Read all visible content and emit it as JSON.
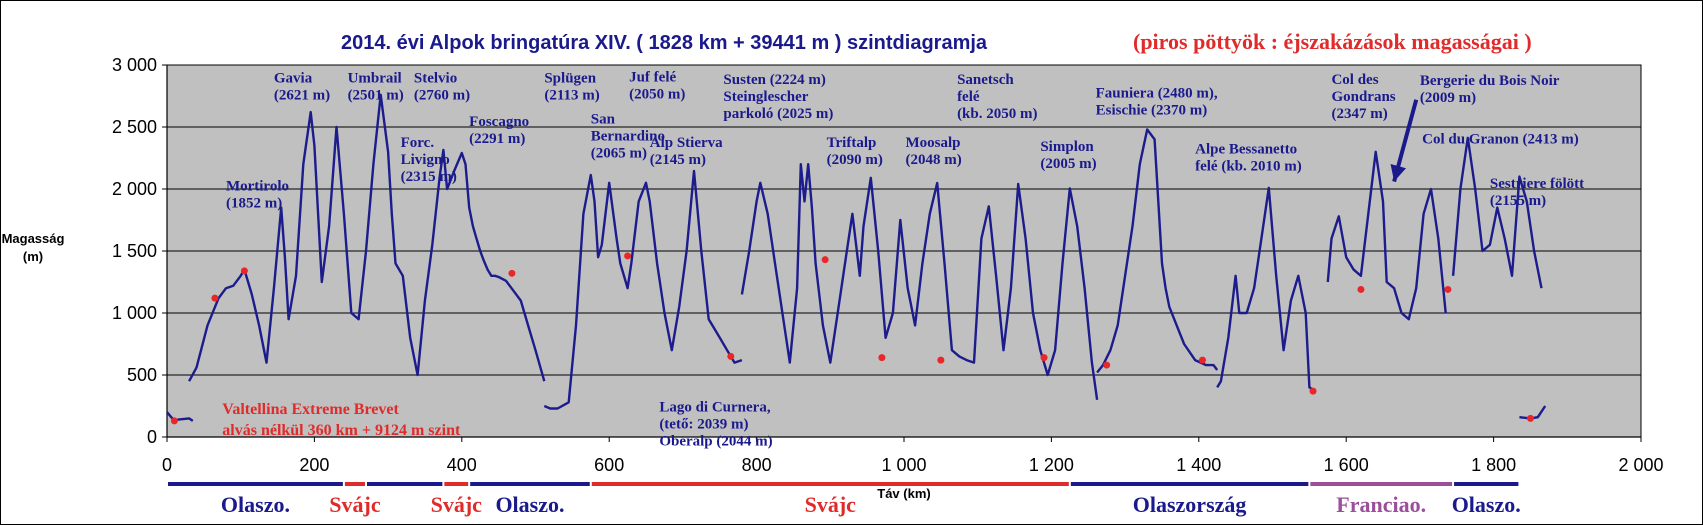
{
  "chart_data": {
    "type": "line",
    "title": "2014. évi Alpok bringatúra XIV.  ( 1828 km + 39441 m ) szintdiagramja",
    "title_red": "(piros pöttyök : éjszakázások magasságai )",
    "ylabel": [
      "Magasság",
      "(m)"
    ],
    "xlabel": "Táv (km)",
    "xlim": [
      0,
      2000
    ],
    "ylim": [
      0,
      3000
    ],
    "xticks": [
      0,
      200,
      400,
      600,
      800,
      1000,
      1200,
      1400,
      1600,
      1800,
      2000
    ],
    "xtick_labels": [
      "0",
      "200",
      "400",
      "600",
      "800",
      "1 000",
      "1 200",
      "1 400",
      "1 600",
      "1 800",
      "2 000"
    ],
    "yticks": [
      0,
      500,
      1000,
      1500,
      2000,
      2500,
      3000
    ],
    "ytick_labels": [
      "0",
      "500",
      "1 000",
      "1 500",
      "2 000",
      "2 500",
      "3 000"
    ],
    "grid": "horizontal",
    "colors": {
      "line": "#1c1c8c",
      "dots": "#e82828",
      "plot_bg": "#c0c0c0",
      "red": "#e02b2b",
      "blue": "#1a1a8c",
      "purple": "#9b4f9b"
    },
    "series": [
      {
        "x": [
          0,
          10,
          15,
          30,
          35
        ],
        "y": [
          200,
          130,
          140,
          150,
          130
        ]
      },
      {
        "x": [
          30,
          40,
          55,
          70,
          80,
          90,
          100,
          105,
          115,
          125,
          135,
          145,
          155,
          160,
          165,
          175,
          185,
          195,
          200,
          210,
          220,
          230,
          240,
          250,
          260,
          270,
          280,
          290,
          300,
          305,
          310,
          320,
          330,
          340,
          350,
          360,
          370,
          375,
          380,
          390,
          400,
          405,
          410,
          415,
          420,
          425,
          430,
          435,
          440,
          445,
          450,
          460,
          470,
          480,
          490,
          500,
          512
        ],
        "y": [
          450,
          560,
          900,
          1120,
          1200,
          1220,
          1300,
          1350,
          1150,
          900,
          600,
          1200,
          1850,
          1450,
          950,
          1300,
          2200,
          2620,
          2350,
          1250,
          1700,
          2500,
          1800,
          1000,
          950,
          1500,
          2200,
          2760,
          2300,
          1800,
          1400,
          1300,
          800,
          500,
          1100,
          1550,
          2100,
          2315,
          2000,
          2150,
          2290,
          2200,
          1850,
          1700,
          1600,
          1500,
          1420,
          1350,
          1300,
          1300,
          1290,
          1260,
          1180,
          1100,
          900,
          700,
          450
        ]
      },
      {
        "x": [
          512,
          520,
          530,
          545,
          555,
          565,
          575,
          580,
          585,
          590,
          600,
          610,
          615,
          625,
          630,
          640,
          650,
          655,
          665,
          675,
          685,
          695,
          705,
          715,
          725,
          735,
          740,
          750,
          760,
          765,
          770,
          780
        ],
        "y": [
          250,
          230,
          230,
          280,
          900,
          1800,
          2113,
          1900,
          1450,
          1550,
          2050,
          1600,
          1400,
          1200,
          1400,
          1900,
          2050,
          1900,
          1400,
          1000,
          700,
          1050,
          1500,
          2145,
          1500,
          950,
          900,
          800,
          700,
          650,
          600,
          620
        ]
      },
      {
        "x": [
          780,
          790,
          800,
          805,
          815,
          825,
          835,
          845,
          855,
          860,
          865,
          870,
          875,
          880,
          890,
          900,
          910,
          920,
          930,
          940,
          945,
          955,
          965,
          975,
          985,
          995,
          1005,
          1015,
          1025,
          1035,
          1045,
          1055,
          1065,
          1075,
          1085,
          1095,
          1105,
          1115,
          1125,
          1135,
          1145,
          1155,
          1165,
          1175,
          1185,
          1195,
          1205,
          1215,
          1225,
          1235,
          1245,
          1255,
          1262
        ],
        "y": [
          1150,
          1500,
          1900,
          2050,
          1800,
          1400,
          1000,
          600,
          1200,
          2200,
          1900,
          2200,
          1850,
          1400,
          900,
          600,
          1000,
          1400,
          1800,
          1300,
          1700,
          2090,
          1500,
          800,
          1000,
          1750,
          1200,
          900,
          1400,
          1800,
          2048,
          1400,
          700,
          650,
          620,
          600,
          1600,
          1860,
          1300,
          700,
          1200,
          2040,
          1600,
          1000,
          700,
          500,
          700,
          1400,
          2005,
          1700,
          1200,
          600,
          300
        ]
      },
      {
        "x": [
          1262,
          1270,
          1280,
          1290,
          1300,
          1310,
          1320,
          1330,
          1340,
          1345,
          1350,
          1355,
          1360,
          1370,
          1380,
          1395,
          1410,
          1420,
          1425
        ],
        "y": [
          520,
          580,
          700,
          900,
          1300,
          1700,
          2200,
          2480,
          2400,
          1900,
          1400,
          1200,
          1050,
          900,
          750,
          620,
          580,
          580,
          540
        ]
      },
      {
        "x": [
          1425,
          1430,
          1440,
          1450,
          1455,
          1465,
          1475,
          1485,
          1495,
          1505,
          1515,
          1525,
          1535,
          1545,
          1550,
          1558
        ],
        "y": [
          400,
          450,
          800,
          1300,
          1000,
          1000,
          1200,
          1600,
          2010,
          1300,
          700,
          1100,
          1300,
          1000,
          400,
          370
        ]
      },
      {
        "x": [
          1575,
          1580,
          1590,
          1600,
          1610,
          1620,
          1630,
          1640,
          1650,
          1655,
          1665,
          1675,
          1685,
          1695,
          1705,
          1715,
          1725,
          1735
        ],
        "y": [
          1250,
          1600,
          1780,
          1450,
          1350,
          1300,
          1800,
          2300,
          1900,
          1250,
          1200,
          1000,
          950,
          1200,
          1800,
          2000,
          1600,
          1000
        ]
      },
      {
        "x": [
          1745,
          1755,
          1765,
          1775,
          1785,
          1795,
          1805,
          1815,
          1825,
          1835,
          1845,
          1855,
          1865
        ],
        "y": [
          1300,
          2000,
          2413,
          2000,
          1500,
          1550,
          1850,
          1600,
          1300,
          2100,
          1900,
          1500,
          1200
        ]
      },
      {
        "x": [
          1835,
          1850,
          1860,
          1870
        ],
        "y": [
          160,
          150,
          160,
          250
        ]
      }
    ],
    "overnight_points": [
      {
        "x": 10,
        "y": 130
      },
      {
        "x": 65,
        "y": 1120
      },
      {
        "x": 105,
        "y": 1340
      },
      {
        "x": 468,
        "y": 1320
      },
      {
        "x": 625,
        "y": 1460
      },
      {
        "x": 765,
        "y": 650
      },
      {
        "x": 893,
        "y": 1430
      },
      {
        "x": 970,
        "y": 640
      },
      {
        "x": 1050,
        "y": 620
      },
      {
        "x": 1190,
        "y": 640
      },
      {
        "x": 1275,
        "y": 580
      },
      {
        "x": 1405,
        "y": 620
      },
      {
        "x": 1555,
        "y": 370
      },
      {
        "x": 1620,
        "y": 1190
      },
      {
        "x": 1738,
        "y": 1190
      },
      {
        "x": 1850,
        "y": 150
      }
    ],
    "annotations": [
      {
        "lines": [
          "Gavia",
          "(2621 m)"
        ],
        "x": 145,
        "y": 2970,
        "color": "blue"
      },
      {
        "lines": [
          "Umbrail",
          "(2501 m)"
        ],
        "x": 245,
        "y": 2970,
        "color": "blue"
      },
      {
        "lines": [
          "Stelvio",
          "(2760 m)"
        ],
        "x": 335,
        "y": 2970,
        "color": "blue"
      },
      {
        "lines": [
          "Mortirolo",
          "(1852 m)"
        ],
        "x": 80,
        "y": 2100,
        "color": "blue"
      },
      {
        "lines": [
          "Forc.",
          "Livigno",
          "(2315 m)"
        ],
        "x": 317,
        "y": 2450,
        "color": "blue"
      },
      {
        "lines": [
          "Foscagno",
          "(2291 m)"
        ],
        "x": 410,
        "y": 2620,
        "color": "blue"
      },
      {
        "lines": [
          "Splügen",
          "(2113 m)"
        ],
        "x": 512,
        "y": 2970,
        "color": "blue"
      },
      {
        "lines": [
          "Juf felé",
          "(2050 m)"
        ],
        "x": 627,
        "y": 2980,
        "color": "blue"
      },
      {
        "lines": [
          "San",
          "Bernardino",
          "(2065 m)"
        ],
        "x": 575,
        "y": 2640,
        "color": "blue"
      },
      {
        "lines": [
          "Alp Stierva",
          "(2145 m)"
        ],
        "x": 655,
        "y": 2450,
        "color": "blue"
      },
      {
        "lines": [
          "Susten (2224 m)",
          "Steinglescher",
          "parkoló (2025 m)"
        ],
        "x": 755,
        "y": 2960,
        "color": "blue"
      },
      {
        "lines": [
          "Triftalp",
          "(2090 m)"
        ],
        "x": 895,
        "y": 2450,
        "color": "blue"
      },
      {
        "lines": [
          "Moosalp",
          "(2048 m)"
        ],
        "x": 1002,
        "y": 2450,
        "color": "blue"
      },
      {
        "lines": [
          "Sanetsch",
          "felé",
          "(kb. 2050 m)"
        ],
        "x": 1072,
        "y": 2960,
        "color": "blue"
      },
      {
        "lines": [
          "Simplon",
          "(2005 m)"
        ],
        "x": 1185,
        "y": 2420,
        "color": "blue"
      },
      {
        "lines": [
          "Fauniera (2480 m),",
          "Esischie (2370 m)"
        ],
        "x": 1260,
        "y": 2850,
        "color": "blue"
      },
      {
        "lines": [
          "Alpe Bessanetto",
          "felé (kb. 2010 m)"
        ],
        "x": 1395,
        "y": 2400,
        "color": "blue"
      },
      {
        "lines": [
          "Col des",
          "Gondrans",
          "(2347 m)"
        ],
        "x": 1580,
        "y": 2960,
        "color": "blue"
      },
      {
        "lines": [
          "Bergerie du Bois Noir",
          "(2009 m)"
        ],
        "x": 1700,
        "y": 2950,
        "color": "blue"
      },
      {
        "lines": [
          "Col du Granon (2413 m)"
        ],
        "x": 1703,
        "y": 2480,
        "color": "blue"
      },
      {
        "lines": [
          "Sestriere fölött",
          "(2155 m)"
        ],
        "x": 1795,
        "y": 2120,
        "color": "blue"
      },
      {
        "lines": [
          "Lago di Curnera,",
          "(tető: 2039 m)",
          "Oberalp (2044 m)"
        ],
        "x": 668,
        "y": 320,
        "color": "blue"
      },
      {
        "lines": [
          "Valtellina Extreme Brevet",
          "alvás nélkül 360 km + 9124 m szint"
        ],
        "x": 75,
        "y": 300,
        "color": "red"
      }
    ],
    "countries": [
      {
        "label": "Olaszo.",
        "x0": 0,
        "x1": 240,
        "color": "blue"
      },
      {
        "label": "Svájc",
        "x0": 240,
        "x1": 270,
        "color": "red"
      },
      {
        "label": "",
        "x0": 270,
        "x1": 375,
        "color": "blue"
      },
      {
        "label": "Svájc",
        "x0": 375,
        "x1": 410,
        "color": "red"
      },
      {
        "label": "Olaszo.",
        "x0": 410,
        "x1": 575,
        "color": "blue"
      },
      {
        "label": "Svájc",
        "x0": 575,
        "x1": 1225,
        "color": "red"
      },
      {
        "label": "Olaszország",
        "x0": 1225,
        "x1": 1550,
        "color": "blue"
      },
      {
        "label": "Franciao.",
        "x0": 1550,
        "x1": 1745,
        "color": "purple"
      },
      {
        "label": "Olaszo.",
        "x0": 1745,
        "x1": 1835,
        "color": "blue"
      }
    ]
  }
}
